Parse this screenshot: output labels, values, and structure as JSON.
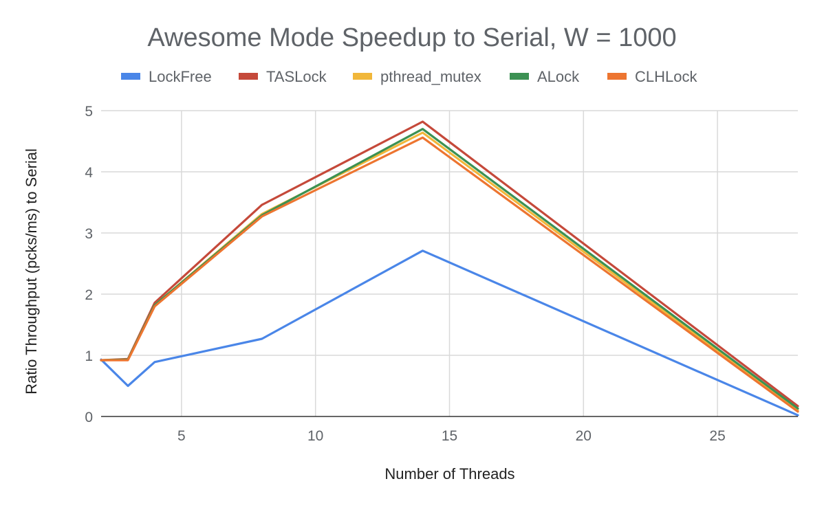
{
  "chart_data": {
    "type": "line",
    "title": "Awesome Mode Speedup to Serial, W = 1000",
    "xlabel": "Number of Threads",
    "ylabel": "Ratio Throughput (pcks/ms) to Serial",
    "xlim": [
      2,
      28
    ],
    "ylim": [
      0,
      5
    ],
    "x_ticks": [
      5,
      10,
      15,
      20,
      25
    ],
    "y_ticks": [
      0,
      1,
      2,
      3,
      4,
      5
    ],
    "grid": true,
    "legend_position": "top",
    "x": [
      2,
      3,
      4,
      8,
      14,
      28
    ],
    "series": [
      {
        "name": "LockFree",
        "color": "#4a86e8",
        "values": [
          0.93,
          0.5,
          0.89,
          1.27,
          2.71,
          0.02
        ]
      },
      {
        "name": "TASLock",
        "color": "#c5493a",
        "values": [
          0.92,
          0.94,
          1.86,
          3.46,
          4.82,
          0.17
        ]
      },
      {
        "name": "pthread_mutex",
        "color": "#f1b73a",
        "values": [
          0.92,
          0.93,
          1.82,
          3.31,
          4.64,
          0.1
        ]
      },
      {
        "name": "ALock",
        "color": "#3c9153",
        "values": [
          0.92,
          0.93,
          1.82,
          3.29,
          4.7,
          0.13
        ]
      },
      {
        "name": "CLHLock",
        "color": "#ed7530",
        "values": [
          0.92,
          0.92,
          1.8,
          3.27,
          4.56,
          0.08
        ]
      }
    ]
  }
}
